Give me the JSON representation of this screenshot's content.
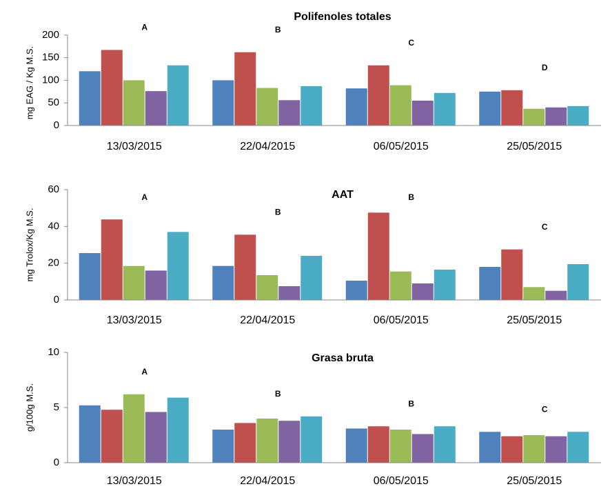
{
  "chart_data": [
    {
      "type": "bar",
      "title": "Polifenoles totales",
      "y_label": "mg EAG / Kg M.S.",
      "categories": [
        "13/03/2015",
        "22/04/2015",
        "06/05/2015",
        "25/05/2015"
      ],
      "annotations": [
        "A",
        "B",
        "C",
        "D"
      ],
      "series": [
        {
          "color": "#4f81bd",
          "values": [
            120,
            100,
            82,
            75
          ]
        },
        {
          "color": "#c0504d",
          "values": [
            167,
            162,
            133,
            78
          ]
        },
        {
          "color": "#9bbb59",
          "values": [
            100,
            83,
            89,
            37
          ]
        },
        {
          "color": "#8064a2",
          "values": [
            76,
            56,
            55,
            40
          ]
        },
        {
          "color": "#4bacc6",
          "values": [
            133,
            87,
            72,
            43
          ]
        }
      ],
      "ylim": [
        0,
        250
      ],
      "yticks": [
        0,
        50,
        100,
        150,
        200
      ]
    },
    {
      "type": "bar",
      "title": "AAT",
      "y_label": "mg Trolox/Kg M.S.",
      "categories": [
        "13/03/2015",
        "22/04/2015",
        "06/05/2015",
        "25/05/2015"
      ],
      "annotations": [
        "A",
        "B",
        "B",
        "C"
      ],
      "series": [
        {
          "color": "#4f81bd",
          "values": [
            25.5,
            18.5,
            10.5,
            18
          ]
        },
        {
          "color": "#c0504d",
          "values": [
            43.8,
            35.5,
            47.5,
            27.5
          ]
        },
        {
          "color": "#9bbb59",
          "values": [
            18.5,
            13.5,
            15.5,
            7
          ]
        },
        {
          "color": "#8064a2",
          "values": [
            16,
            7.5,
            9,
            5
          ]
        },
        {
          "color": "#4bacc6",
          "values": [
            37,
            24,
            16.5,
            19.5
          ]
        }
      ],
      "ylim": [
        0,
        60
      ],
      "yticks": [
        0,
        20,
        40,
        60
      ]
    },
    {
      "type": "bar",
      "title": "Grasa bruta",
      "y_label": "g/100g M.S.",
      "categories": [
        "13/03/2015",
        "22/04/2015",
        "06/05/2015",
        "25/05/2015"
      ],
      "annotations": [
        "A",
        "B",
        "B",
        "C"
      ],
      "series": [
        {
          "color": "#4f81bd",
          "values": [
            5.2,
            3.0,
            3.1,
            2.8
          ]
        },
        {
          "color": "#c0504d",
          "values": [
            4.8,
            3.6,
            3.3,
            2.4
          ]
        },
        {
          "color": "#9bbb59",
          "values": [
            6.2,
            4.0,
            3.0,
            2.5
          ]
        },
        {
          "color": "#8064a2",
          "values": [
            4.6,
            3.8,
            2.6,
            2.4
          ]
        },
        {
          "color": "#4bacc6",
          "values": [
            5.9,
            4.2,
            3.3,
            2.8
          ]
        }
      ],
      "ylim": [
        0,
        10
      ],
      "yticks": [
        0,
        5,
        10
      ]
    }
  ]
}
